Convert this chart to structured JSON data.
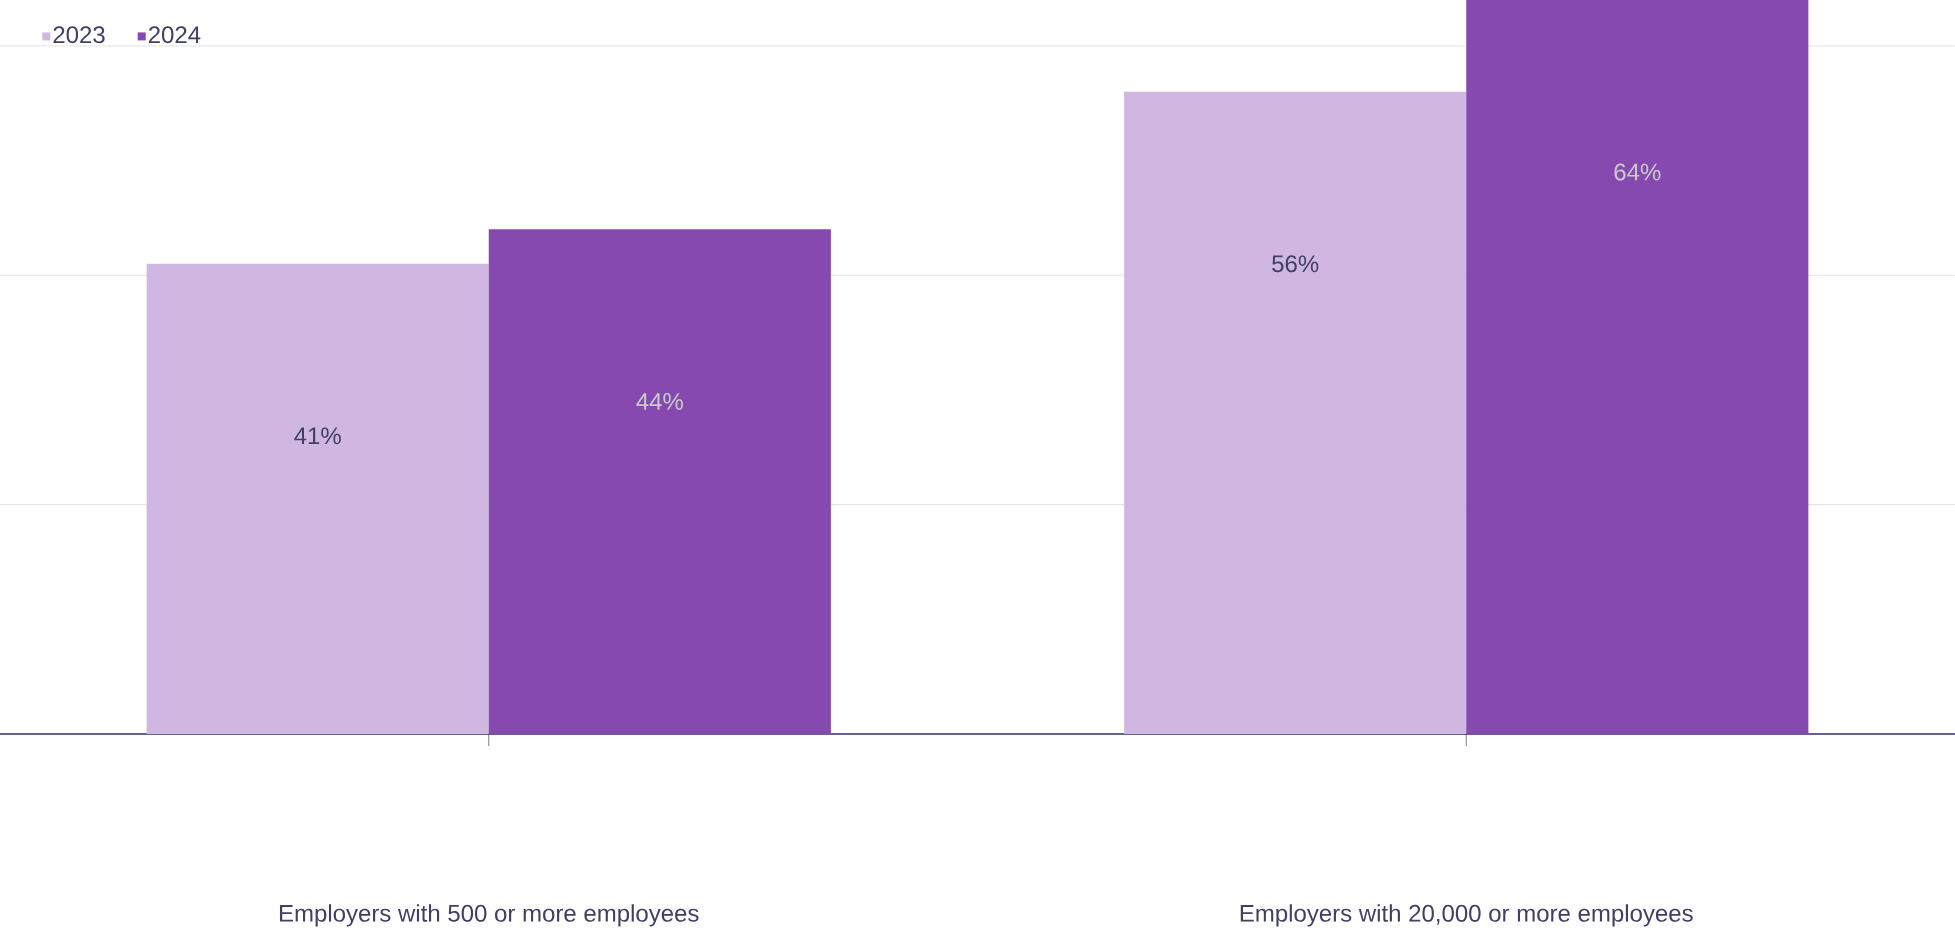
{
  "chart_data": {
    "type": "bar",
    "categories": [
      "Employers with 500 or more employees",
      "Employers with 20,000 or more employees"
    ],
    "series": [
      {
        "name": "2023",
        "color": "#cfb7e2",
        "values": [
          41,
          56
        ],
        "value_labels": [
          "41%",
          "56%"
        ]
      },
      {
        "name": "2024",
        "color": "#8549b0",
        "values": [
          44,
          64
        ],
        "value_labels": [
          "44%",
          "64%"
        ]
      }
    ],
    "grid": "y",
    "legend": "top left",
    "tick_labels": "x"
  }
}
